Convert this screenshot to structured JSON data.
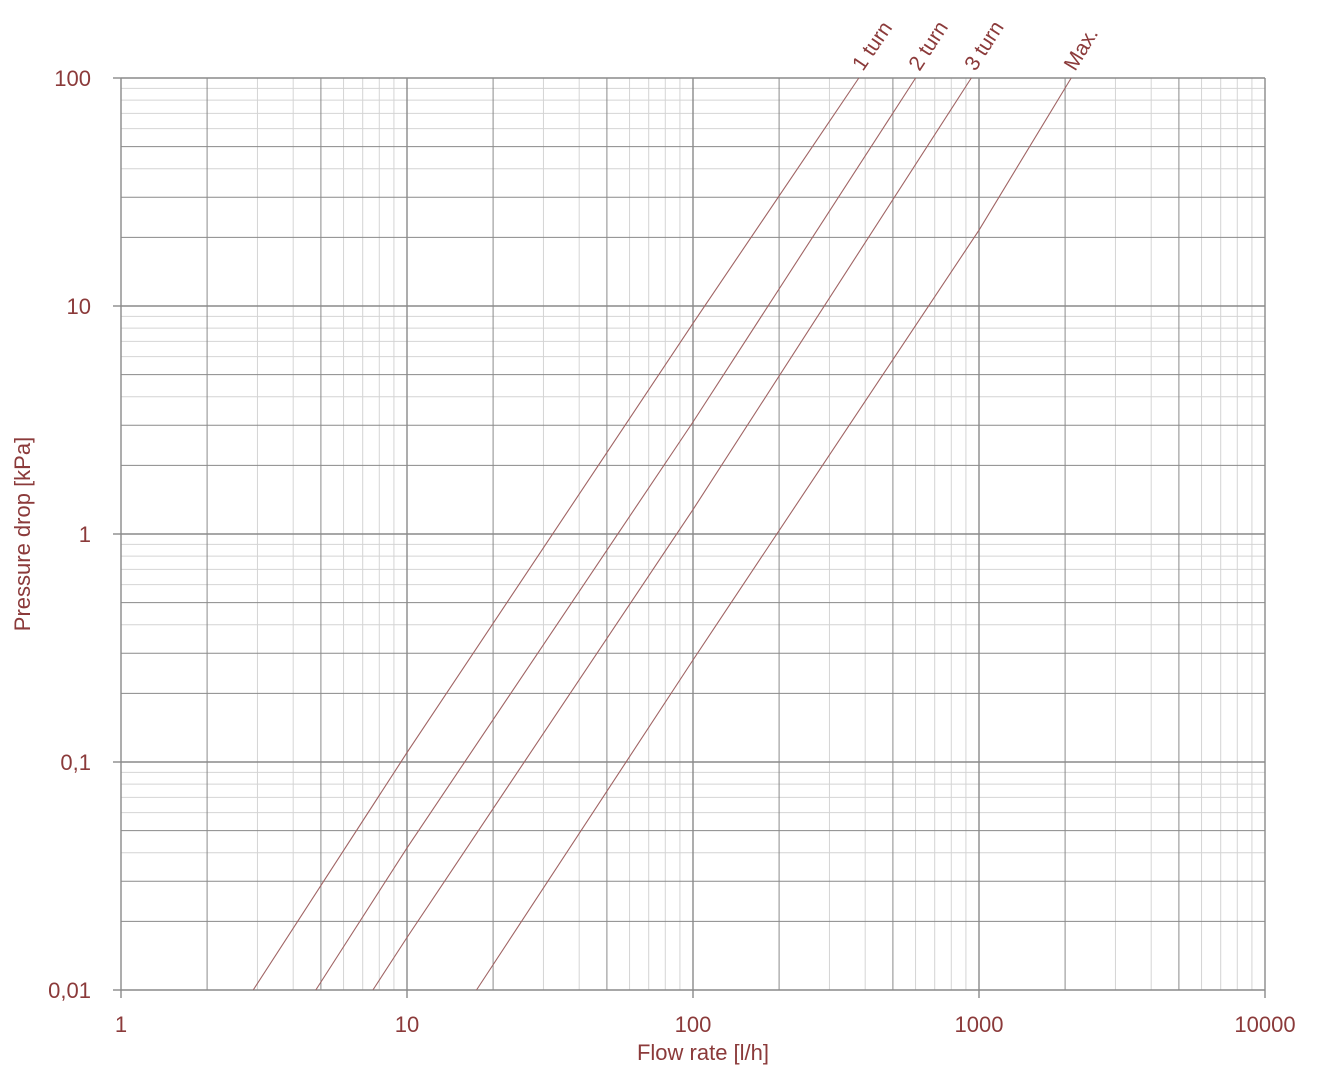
{
  "chart_data": {
    "type": "line",
    "x_scale": "log",
    "y_scale": "log",
    "xlim": [
      1,
      10000
    ],
    "ylim": [
      0.01,
      100
    ],
    "xlabel": "Flow rate [l/h]",
    "ylabel": "Pressure drop [kPa]",
    "x_ticks": [
      1,
      10,
      100,
      1000,
      10000
    ],
    "x_tick_labels": [
      "1",
      "10",
      "100",
      "1000",
      "10000"
    ],
    "y_ticks": [
      0.01,
      0.1,
      1,
      10,
      100
    ],
    "y_tick_labels": [
      "0,01",
      "0,1",
      "1",
      "10",
      "100"
    ],
    "grid": true,
    "colors": {
      "series": "#a06464",
      "grid_major": "#8a8a8a",
      "grid_minor": "#d4d4d4",
      "text": "#8b3a3a"
    },
    "series": [
      {
        "name": "1 turn",
        "x": [
          2.9,
          10,
          100,
          380
        ],
        "y": [
          0.01,
          0.11,
          8.4,
          100
        ]
      },
      {
        "name": "2 turn",
        "x": [
          4.8,
          10,
          100,
          600
        ],
        "y": [
          0.01,
          0.042,
          3.1,
          100
        ]
      },
      {
        "name": "3 turn",
        "x": [
          7.6,
          10,
          100,
          940
        ],
        "y": [
          0.01,
          0.017,
          1.28,
          100
        ]
      },
      {
        "name": "Max.",
        "x": [
          17.5,
          100,
          1000,
          2100
        ],
        "y": [
          0.01,
          0.28,
          21.5,
          100
        ]
      }
    ]
  }
}
